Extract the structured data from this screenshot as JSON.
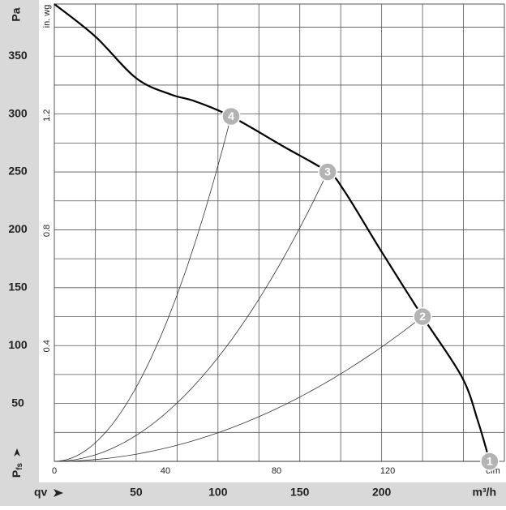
{
  "chart_data": {
    "type": "line",
    "y_label": "Pa",
    "y_label_left": {
      "main": "P",
      "sub": "fs"
    },
    "x_label": "qv",
    "x_unit": "m³/h",
    "x2_label": "cfm",
    "y2_label": "in. wg",
    "xlim": [
      0,
      275
    ],
    "ylim": [
      0,
      395
    ],
    "xticks": [
      50,
      100,
      150,
      200
    ],
    "yticks": [
      50,
      100,
      150,
      200,
      250,
      300,
      350
    ],
    "xgrid": [
      25,
      50,
      75,
      100,
      125,
      150,
      175,
      200,
      225,
      250
    ],
    "ygrid": [
      25,
      50,
      75,
      100,
      125,
      150,
      175,
      200,
      225,
      250,
      275,
      300,
      325,
      350,
      375
    ],
    "x2lim": [
      0,
      162
    ],
    "x2ticks": [
      0,
      40,
      80,
      120
    ],
    "y2lim": [
      0,
      1.586
    ],
    "y2ticks": [
      0.4,
      0.8,
      1.2
    ],
    "grid": true,
    "series": [
      {
        "color": "#000000",
        "x": [
          0,
          25,
          50,
          71,
          86,
          108,
          140,
          167,
          177,
          200,
          225,
          249,
          259,
          266
        ],
        "values": [
          395,
          367,
          331,
          317,
          311,
          298,
          272,
          250,
          234,
          181,
          125,
          73,
          34,
          0
        ]
      }
    ],
    "operating_points": [
      {
        "label": "1",
        "x": 266,
        "y": 0
      },
      {
        "label": "2",
        "x": 225,
        "y": 125
      },
      {
        "label": "3",
        "x": 167,
        "y": 250
      },
      {
        "label": "4",
        "x": 108,
        "y": 298
      }
    ]
  }
}
